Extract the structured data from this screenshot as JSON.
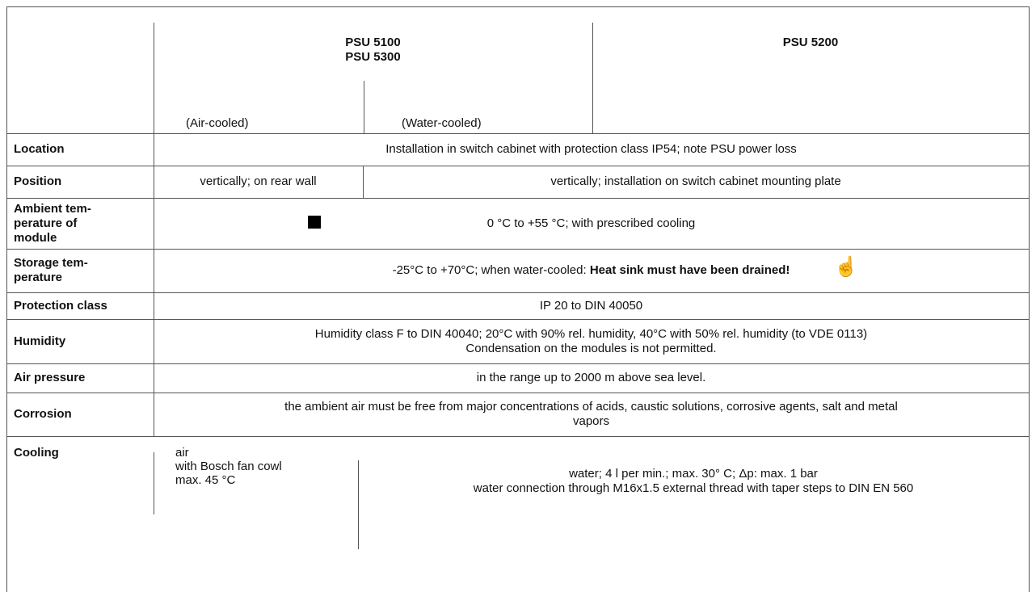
{
  "header": {
    "group_a": [
      "PSU 5100",
      "PSU 5300"
    ],
    "air": "(Air-cooled)",
    "water": "(Water-cooled)",
    "group_b": "PSU 5200"
  },
  "rows": [
    {
      "label": [
        "Location"
      ],
      "text": "Installation in switch cabinet with protection class IP54; note PSU power loss"
    },
    {
      "label": [
        "Position"
      ],
      "left": "vertically; on rear wall",
      "right": "vertically; installation on switch cabinet mounting plate"
    },
    {
      "label": [
        "Ambient tem-",
        "perature of",
        "module"
      ],
      "text": "0 °C  to +55 °C; with prescribed cooling"
    },
    {
      "label": [
        "Storage tem-",
        "perature"
      ],
      "text": "-25°C  to +70°C;   when water-cooled: ",
      "bold": "Heat sink must have been drained!"
    },
    {
      "label": [
        "Protection class"
      ],
      "text": "IP 20 to DIN 40050"
    },
    {
      "label": [
        "Humidity"
      ],
      "lines": [
        "Humidity class F to DIN 40040; 20°C with 90% rel. humidity, 40°C with 50% rel. humidity (to VDE 0113)",
        "Condensation on the modules is not permitted."
      ]
    },
    {
      "label": [
        "Air pressure"
      ],
      "text": "in the range up to 2000 m above sea level."
    },
    {
      "label": [
        "Corrosion"
      ],
      "lines": [
        "the ambient air must be free from major concentrations of acids, caustic solutions, corrosive agents, salt and metal",
        "vapors"
      ]
    },
    {
      "label": [
        "Cooling"
      ],
      "left_lines": [
        "air",
        "with Bosch fan cowl",
        "max. 45 °C"
      ],
      "right_lines": [
        "water; 4 l per min.; max. 30° C; Δp: max. 1 bar",
        "water connection through M16x1.5 external thread with taper steps to DIN EN 560"
      ]
    }
  ]
}
